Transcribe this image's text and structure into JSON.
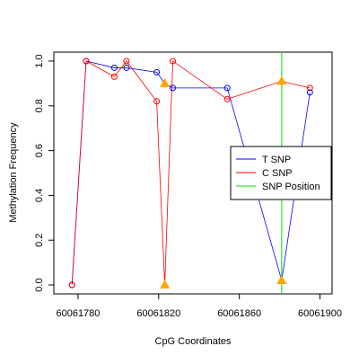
{
  "chart_data": {
    "type": "line",
    "x_label": "CpG Coordinates",
    "y_label": "Methylation Frequency",
    "x": [
      60061777,
      60061784,
      60061798,
      60061804,
      60061819,
      60061823,
      60061827,
      60061854,
      60061881,
      60061895
    ],
    "series": [
      {
        "name": "T SNP",
        "color": "#0000ff",
        "values": [
          0,
          1.0,
          0.97,
          0.97,
          0.95,
          0.9,
          0.88,
          0.88,
          0.02,
          0.86
        ]
      },
      {
        "name": "C SNP",
        "color": "#ff0000",
        "values": [
          0,
          1.0,
          0.93,
          1.0,
          0.82,
          0.0,
          1.0,
          0.83,
          0.91,
          0.88
        ]
      }
    ],
    "snp_position": {
      "name": "SNP Position",
      "color": "#00dd00",
      "x": 60061881
    },
    "snp_marker_color": "#ffa500",
    "xlim": [
      60061768,
      60061906
    ],
    "ylim": [
      -0.04,
      1.04
    ],
    "xticks": [
      60061780,
      60061820,
      60061860,
      60061900
    ],
    "yticks": [
      {
        "value": 0,
        "label": "0.0"
      },
      0.2,
      0.4,
      0.6,
      0.8,
      {
        "value": 1,
        "label": "1.0"
      }
    ],
    "legend": "right"
  }
}
